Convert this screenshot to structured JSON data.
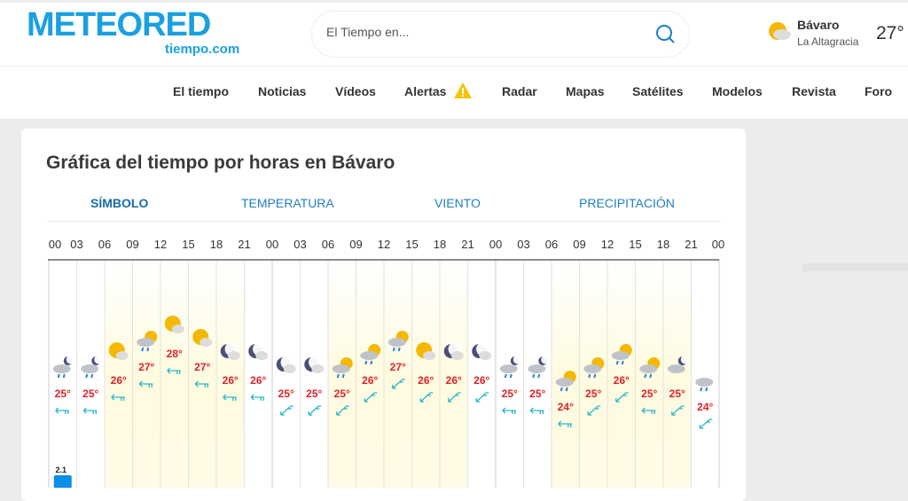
{
  "header": {
    "logo_text": "METEORED",
    "logo_sub": "tiempo.com",
    "search_placeholder": "El Tiempo en...",
    "location": {
      "name": "Bávaro",
      "region": "La Altagracia",
      "temp": "27°",
      "icon": "sun-cloud"
    }
  },
  "nav": [
    {
      "label": "El tiempo"
    },
    {
      "label": "Noticias"
    },
    {
      "label": "Vídeos"
    },
    {
      "label": "Alertas",
      "icon": "warning-icon"
    },
    {
      "label": "Radar"
    },
    {
      "label": "Mapas"
    },
    {
      "label": "Satélites"
    },
    {
      "label": "Modelos"
    },
    {
      "label": "Revista"
    },
    {
      "label": "Foro"
    }
  ],
  "card": {
    "title": "Gráfica del tiempo por horas en Bávaro",
    "tabs": [
      {
        "label": "SÍMBOLO",
        "active": true
      },
      {
        "label": "TEMPERATURA"
      },
      {
        "label": "VIENTO"
      },
      {
        "label": "PRECIPITACIÓN"
      }
    ]
  },
  "colors": {
    "brand": "#1aa0e0",
    "temp": "#e0202a",
    "wind": "#2ab8c8",
    "precip": "#0a8ee8"
  },
  "hours": [
    "00",
    "03",
    "06",
    "09",
    "12",
    "15",
    "18",
    "21",
    "00",
    "03",
    "06",
    "09",
    "12",
    "15",
    "18",
    "21",
    "00",
    "03",
    "06",
    "09",
    "12",
    "15",
    "18",
    "21",
    "00"
  ],
  "forecast": {
    "temps": [
      25,
      25,
      26,
      27,
      28,
      27,
      26,
      26,
      25,
      25,
      25,
      26,
      27,
      26,
      26,
      26,
      25,
      25,
      24,
      25,
      26,
      25,
      25,
      24
    ],
    "icons": [
      "rain-moon",
      "rain-moon",
      "sun-cloud",
      "rain-sun",
      "sun-cloud",
      "sun-cloud",
      "moon-cloud",
      "moon-cloud",
      "moon-cloud",
      "moon-cloud",
      "rain-sun",
      "rain-sun",
      "rain-sun",
      "sun-cloud",
      "moon-cloud",
      "moon-cloud",
      "rain-moon",
      "rain-moon",
      "rain-sun",
      "rain-sun",
      "rain-sun",
      "rain-sun",
      "cloud-moon",
      "rain-cloud"
    ],
    "wind": [
      "W",
      "W",
      "W",
      "W",
      "W",
      "W",
      "W",
      "W",
      "SW",
      "SW",
      "SW",
      "SW",
      "SW",
      "SW",
      "SW",
      "SW",
      "W",
      "W",
      "W",
      "SW",
      "SW",
      "W",
      "SW",
      "SW"
    ],
    "precip": [
      {
        "index": 0,
        "value": "2.1"
      }
    ]
  }
}
